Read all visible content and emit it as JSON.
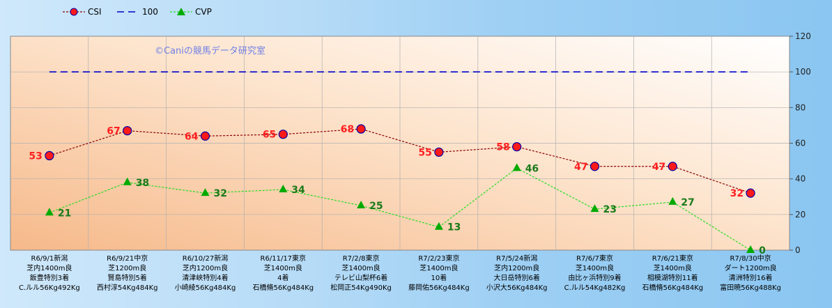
{
  "chart_data": {
    "type": "line",
    "title": "",
    "watermark": "©Caniの競馬データ研究室",
    "xlabel": "",
    "ylabel": "",
    "ylim": [
      0,
      120
    ],
    "yticks": [
      "0",
      "20",
      "40",
      "60",
      "80",
      "100",
      "120"
    ],
    "grid": true,
    "legend_position": "top-left",
    "categories": [
      [
        "R6/9/1新潟",
        "芝内1400m良",
        "飯豊特別3着",
        "C.ルル56Kg492Kg"
      ],
      [
        "R6/9/21中京",
        "芝1200m良",
        "賢島特別5着",
        "西村淳54Kg484Kg"
      ],
      [
        "R6/10/27新潟",
        "芝内1200m良",
        "清津峡特別4着",
        "小崎綾56Kg484Kg"
      ],
      [
        "R6/11/17東京",
        "芝1400m良",
        "4着",
        "石橋脩56Kg484Kg"
      ],
      [
        "R7/2/8東京",
        "芝1400m良",
        "テレビ山梨杯6着",
        "松岡正54Kg490Kg"
      ],
      [
        "R7/2/23東京",
        "芝1400m良",
        "10着",
        "藤岡佑56Kg484Kg"
      ],
      [
        "R7/5/24新潟",
        "芝内1200m良",
        "大日岳特別6着",
        "小沢大56Kg484Kg"
      ],
      [
        "R7/6/7東京",
        "芝1400m良",
        "由比ヶ浜特別9着",
        "C.ルル54Kg482Kg"
      ],
      [
        "R7/6/21東京",
        "芝1400m良",
        "相模湖特別11着",
        "石橋脩56Kg484Kg"
      ],
      [
        "R7/8/30中京",
        "ダート1200m良",
        "清洲特別16着",
        "富田暁56Kg488Kg"
      ]
    ],
    "series": [
      {
        "name": "CSI",
        "color": "#8b0000",
        "marker_color": "#ff1a1a",
        "label_color": "#ff2020",
        "values": [
          53,
          67,
          64,
          65,
          68,
          55,
          58,
          47,
          47,
          32
        ]
      },
      {
        "name": "100",
        "color": "#0000cc",
        "values": [
          100,
          100,
          100,
          100,
          100,
          100,
          100,
          100,
          100,
          100
        ]
      },
      {
        "name": "CVP",
        "color": "#22dd22",
        "marker_color": "#00aa00",
        "label_color": "#1a7a1a",
        "values": [
          21,
          38,
          32,
          34,
          25,
          13,
          46,
          23,
          27,
          0
        ]
      }
    ]
  }
}
